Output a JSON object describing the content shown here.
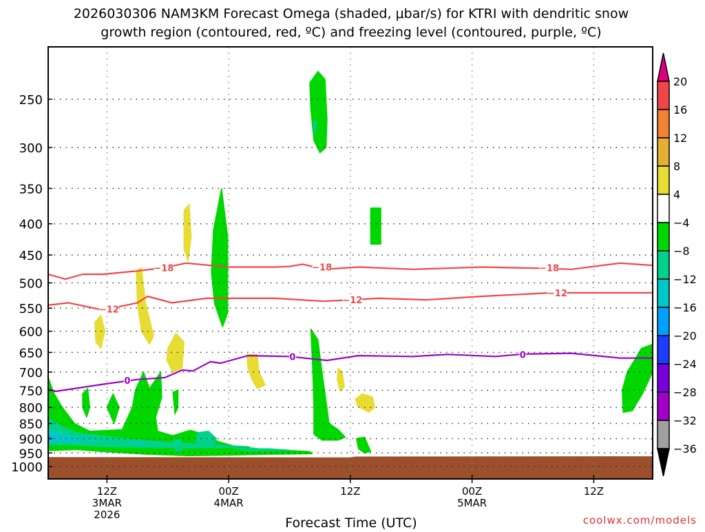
{
  "chart_data": {
    "type": "heatmap",
    "title_line1": "2026030306 NAM3KM Forecast Omega (shaded, μbar/s) for KTRI with dendritic snow",
    "title_line2": "growth region (contoured, red, ºC) and freezing level (contoured, purple, ºC)",
    "xlabel": "Forecast Time (UTC)",
    "credit": "coolwx.com/models",
    "x_units": "hours since 06Z 3MAR 2026",
    "xlim": [
      0,
      60
    ],
    "ylim_hPa": [
      1047,
      205
    ],
    "y_ticks": [
      250,
      300,
      350,
      400,
      450,
      500,
      550,
      600,
      650,
      700,
      750,
      800,
      850,
      900,
      950,
      1000
    ],
    "x_ticks": [
      {
        "hour": 6,
        "lines": [
          "12Z",
          "3MAR",
          "2026"
        ]
      },
      {
        "hour": 18,
        "lines": [
          "00Z",
          "4MAR"
        ]
      },
      {
        "hour": 30,
        "lines": [
          "12Z"
        ]
      },
      {
        "hour": 42,
        "lines": [
          "00Z",
          "5MAR"
        ]
      },
      {
        "hour": 54,
        "lines": [
          "12Z"
        ]
      }
    ],
    "grid": true,
    "colorbar": {
      "labels": [
        "20",
        "16",
        "12",
        "8",
        "4",
        "−4",
        "−8",
        "−12",
        "−16",
        "−20",
        "−24",
        "−28",
        "−32",
        "−36"
      ],
      "top_arrow_color": "#e0007f",
      "bottom_arrow_color": "#000000",
      "colors": [
        "#f24545",
        "#f08232",
        "#e6ae33",
        "#e6dc32",
        "#ffffff",
        "#00d700",
        "#00d28c",
        "#00c8c8",
        "#00a0ff",
        "#1e3cff",
        "#7800dc",
        "#a000c8",
        "#a0a0a0"
      ]
    },
    "ground_color": "#9c4f2b",
    "ground_surface_hPa": [
      [
        0,
        965
      ],
      [
        30,
        966
      ],
      [
        30.5,
        963
      ],
      [
        60,
        962
      ]
    ],
    "shading": [
      {
        "level": "4 to 8",
        "color": "#e6dc32",
        "polygons": [
          [
            [
              13.6,
              380
            ],
            [
              14.1,
              372
            ],
            [
              14.3,
              420
            ],
            [
              14.0,
              460
            ],
            [
              13.6,
              440
            ]
          ],
          [
            [
              8.9,
              478
            ],
            [
              9.4,
              472
            ],
            [
              9.8,
              540
            ],
            [
              10.6,
              610
            ],
            [
              10.2,
              630
            ],
            [
              9.4,
              600
            ],
            [
              9.0,
              540
            ]
          ],
          [
            [
              4.8,
              580
            ],
            [
              5.4,
              565
            ],
            [
              5.8,
              600
            ],
            [
              5.4,
              640
            ],
            [
              4.9,
              625
            ]
          ],
          [
            [
              12.0,
              640
            ],
            [
              12.8,
              605
            ],
            [
              13.6,
              625
            ],
            [
              13.4,
              690
            ],
            [
              12.5,
              700
            ],
            [
              11.9,
              670
            ]
          ],
          [
            [
              19.8,
              655
            ],
            [
              20.8,
              655
            ],
            [
              21.0,
              700
            ],
            [
              21.6,
              735
            ],
            [
              20.8,
              745
            ],
            [
              20.3,
              720
            ],
            [
              19.9,
              690
            ]
          ],
          [
            [
              28.8,
              690
            ],
            [
              29.2,
              700
            ],
            [
              29.4,
              740
            ],
            [
              29.0,
              752
            ],
            [
              28.7,
              720
            ]
          ],
          [
            [
              30.5,
              775
            ],
            [
              31.2,
              760
            ],
            [
              32.2,
              770
            ],
            [
              32.4,
              800
            ],
            [
              31.8,
              815
            ],
            [
              30.7,
              795
            ]
          ],
          [
            [
              60,
              840
            ],
            [
              59.7,
              850
            ],
            [
              60,
              855
            ]
          ]
        ]
      },
      {
        "level": "-8 to -4",
        "color": "#00d700",
        "polygons": [
          [
            [
              26.0,
              235
            ],
            [
              26.8,
              225
            ],
            [
              27.5,
              232
            ],
            [
              27.7,
              270
            ],
            [
              27.6,
              300
            ],
            [
              27.0,
              306
            ],
            [
              26.4,
              292
            ],
            [
              26.1,
              260
            ]
          ],
          [
            [
              32.0,
              377
            ],
            [
              33.0,
              377
            ],
            [
              33.0,
              432
            ],
            [
              32.0,
              432
            ]
          ],
          [
            [
              17.3,
              350
            ],
            [
              17.9,
              420
            ],
            [
              17.9,
              560
            ],
            [
              17.4,
              590
            ],
            [
              16.6,
              540
            ],
            [
              16.3,
              480
            ],
            [
              16.5,
              410
            ]
          ],
          [
            [
              0,
              700
            ],
            [
              0.8,
              760
            ],
            [
              1.6,
              800
            ],
            [
              2.8,
              850
            ],
            [
              4.3,
              875
            ],
            [
              7.5,
              870
            ],
            [
              8.5,
              800
            ],
            [
              8.8,
              750
            ],
            [
              9.6,
              700
            ],
            [
              10.2,
              745
            ],
            [
              11.3,
              700
            ],
            [
              11.4,
              770
            ],
            [
              10.8,
              830
            ],
            [
              11.0,
              875
            ],
            [
              12.5,
              890
            ],
            [
              14.2,
              872
            ],
            [
              15.6,
              885
            ],
            [
              17.0,
              910
            ],
            [
              18.5,
              925
            ],
            [
              21,
              935
            ],
            [
              26,
              945
            ],
            [
              26.2,
              953
            ],
            [
              22,
              955
            ],
            [
              18,
              958
            ],
            [
              14,
              960
            ],
            [
              10,
              955
            ],
            [
              6,
              946
            ],
            [
              3,
              938
            ],
            [
              0,
              942
            ]
          ],
          [
            [
              3.6,
              760
            ],
            [
              4.1,
              745
            ],
            [
              4.3,
              800
            ],
            [
              4.0,
              830
            ],
            [
              3.6,
              800
            ]
          ],
          [
            [
              6.0,
              800
            ],
            [
              6.6,
              760
            ],
            [
              7.2,
              800
            ],
            [
              6.7,
              850
            ]
          ],
          [
            [
              12.5,
              755
            ],
            [
              13.0,
              750
            ],
            [
              13.0,
              800
            ],
            [
              12.7,
              820
            ]
          ],
          [
            [
              26.1,
              595
            ],
            [
              26.8,
              620
            ],
            [
              27.2,
              700
            ],
            [
              27.6,
              780
            ],
            [
              27.9,
              850
            ],
            [
              28.8,
              870
            ],
            [
              29.5,
              895
            ],
            [
              28.8,
              905
            ],
            [
              27.2,
              905
            ],
            [
              26.4,
              885
            ],
            [
              26.4,
              800
            ],
            [
              26.3,
              700
            ]
          ],
          [
            [
              30.6,
              900
            ],
            [
              31.4,
              895
            ],
            [
              32.0,
              945
            ],
            [
              31.4,
              950
            ],
            [
              30.8,
              935
            ]
          ],
          [
            [
              59.8,
              630
            ],
            [
              58.7,
              640
            ],
            [
              58.0,
              670
            ],
            [
              57.3,
              700
            ],
            [
              56.8,
              750
            ],
            [
              56.9,
              815
            ],
            [
              57.8,
              810
            ],
            [
              58.8,
              760
            ],
            [
              59.8,
              700
            ]
          ]
        ]
      },
      {
        "level": "-12 to -8",
        "color": "#00d28c",
        "polygons": [
          [
            [
              0,
              830
            ],
            [
              1.5,
              860
            ],
            [
              3,
              880
            ],
            [
              6,
              893
            ],
            [
              9,
              905
            ],
            [
              13,
              915
            ],
            [
              20,
              928
            ],
            [
              16,
              932
            ],
            [
              10,
              930
            ],
            [
              6,
              928
            ],
            [
              2,
              920
            ],
            [
              0,
              922
            ]
          ],
          [
            [
              15.0,
              880
            ],
            [
              16.0,
              875
            ],
            [
              16.8,
              900
            ],
            [
              16.4,
              930
            ],
            [
              15.3,
              930
            ],
            [
              14.7,
              905
            ]
          ],
          [
            [
              12.6,
              905
            ],
            [
              13.2,
              900
            ],
            [
              13.4,
              940
            ],
            [
              12.8,
              945
            ]
          ],
          [
            [
              18.5,
              935
            ],
            [
              22,
              935
            ],
            [
              24,
              940
            ],
            [
              20,
              942
            ]
          ]
        ]
      },
      {
        "level": "-16 to -12",
        "color": "#00c8c8",
        "polygons": [
          [
            [
              0,
              870
            ],
            [
              1.5,
              885
            ],
            [
              3,
              898
            ],
            [
              5,
              905
            ],
            [
              2,
              912
            ],
            [
              0,
              915
            ]
          ],
          [
            [
              8.5,
              910
            ],
            [
              9.8,
              910
            ],
            [
              9.2,
              918
            ]
          ],
          [
            [
              26.4,
              272
            ],
            [
              26.5,
              285
            ],
            [
              26.6,
              272
            ]
          ]
        ]
      },
      {
        "level": "-20 to -16",
        "color": "#00a0ff",
        "polygons": [
          [
            [
              0,
              885
            ],
            [
              0.4,
              895
            ],
            [
              0,
              905
            ]
          ]
        ]
      }
    ],
    "contours": [
      {
        "name": "-18 ºC isotherm",
        "label": "−18",
        "color": "#f24545",
        "points": [
          [
            0.2,
            484
          ],
          [
            1.9,
            493
          ],
          [
            3.6,
            484
          ],
          [
            5.6,
            484
          ],
          [
            9.0,
            478
          ],
          [
            11.7,
            472
          ],
          [
            13.8,
            464
          ],
          [
            17.9,
            471
          ],
          [
            22.6,
            471
          ],
          [
            24.0,
            470
          ],
          [
            25.3,
            466
          ],
          [
            27.4,
            475
          ],
          [
            30.8,
            471
          ],
          [
            36.2,
            475
          ],
          [
            39.6,
            473
          ],
          [
            43.0,
            471
          ],
          [
            48.4,
            473
          ],
          [
            51.8,
            475
          ],
          [
            56.6,
            464
          ],
          [
            59.8,
            468
          ]
        ],
        "label_at": [
          [
            11.6,
            472
          ],
          [
            27.2,
            471
          ],
          [
            49.6,
            472
          ]
        ]
      },
      {
        "name": "-12 ºC isotherm",
        "label": "−12",
        "color": "#f24545",
        "points": [
          [
            0.2,
            544
          ],
          [
            2.2,
            539
          ],
          [
            5.6,
            554
          ],
          [
            9.0,
            539
          ],
          [
            10.0,
            526
          ],
          [
            12.4,
            539
          ],
          [
            15.8,
            530
          ],
          [
            22.6,
            530
          ],
          [
            27.4,
            536
          ],
          [
            32.8,
            530
          ],
          [
            37.5,
            533
          ],
          [
            43.0,
            526
          ],
          [
            49.8,
            519
          ],
          [
            59.8,
            519
          ]
        ],
        "label_at": [
          [
            6.2,
            552
          ],
          [
            30.2,
            533
          ],
          [
            50.4,
            519
          ]
        ]
      },
      {
        "name": "0 ºC freezing level",
        "label": "0",
        "color": "#9b00c8",
        "points": [
          [
            0.2,
            747
          ],
          [
            0.9,
            753
          ],
          [
            5.6,
            733
          ],
          [
            9.0,
            720
          ],
          [
            11.7,
            715
          ],
          [
            13.4,
            695
          ],
          [
            14.5,
            697
          ],
          [
            16.2,
            673
          ],
          [
            17.2,
            677
          ],
          [
            19.9,
            658
          ],
          [
            24.0,
            660
          ],
          [
            27.7,
            670
          ],
          [
            30.8,
            658
          ],
          [
            36.2,
            660
          ],
          [
            39.6,
            655
          ],
          [
            44.3,
            660
          ],
          [
            47.0,
            654
          ],
          [
            51.8,
            652
          ],
          [
            56.6,
            664
          ],
          [
            59.8,
            664
          ]
        ],
        "label_at": [
          [
            8.0,
            722
          ],
          [
            24.3,
            660
          ],
          [
            47.0,
            655
          ]
        ]
      }
    ]
  }
}
